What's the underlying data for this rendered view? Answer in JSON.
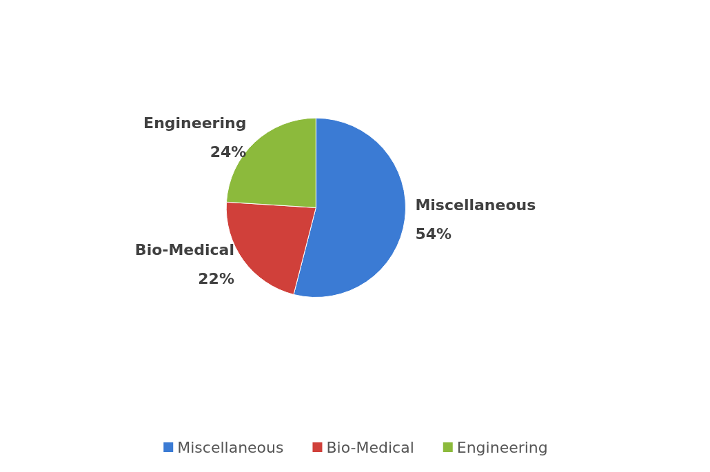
{
  "chart_data": {
    "type": "pie",
    "categories": [
      "Miscellaneous",
      "Bio-Medical",
      "Engineering"
    ],
    "values": [
      54,
      22,
      24
    ],
    "value_labels": [
      "54%",
      "22%",
      "24%"
    ],
    "colors": [
      "#3b7bd4",
      "#d0403a",
      "#8cba3c"
    ],
    "legend": "bottom"
  }
}
